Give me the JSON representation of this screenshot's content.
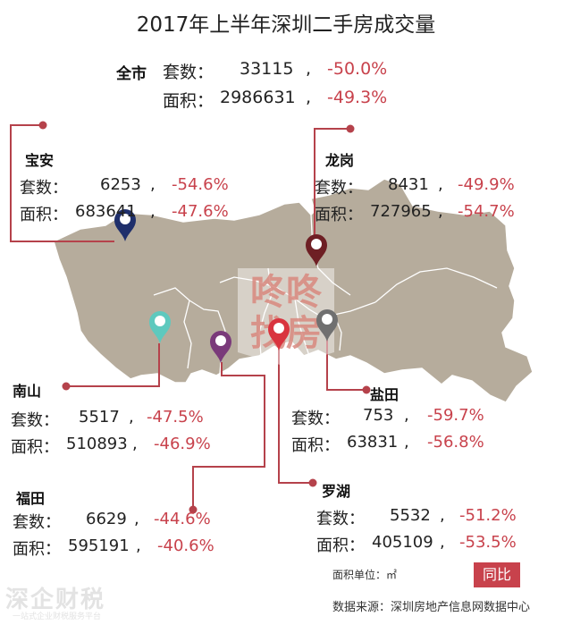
{
  "title": "2017年上半年深圳二手房成交量",
  "citywide": {
    "name": "全市",
    "sets_label": "套数：",
    "sets": "33115",
    "sets_change": "-50.0%",
    "area_label": "面积：",
    "area": "2986631",
    "area_change": "-49.3%"
  },
  "districts": {
    "baoan": {
      "name": "宝安",
      "sets_label": "套数：",
      "sets": "6253",
      "sets_change": "-54.6%",
      "area_label": "面积：",
      "area": "683641",
      "area_change": "-47.6%",
      "pin_color": "#1f2f6b"
    },
    "longgang": {
      "name": "龙岗",
      "sets_label": "套数：",
      "sets": "8431",
      "sets_change": "-49.9%",
      "area_label": "面积：",
      "area": "727965",
      "area_change": "-54.7%",
      "pin_color": "#6e1f24"
    },
    "nanshan": {
      "name": "南山",
      "sets_label": "套数：",
      "sets": "5517",
      "sets_change": "-47.5%",
      "area_label": "面积：",
      "area": "510893",
      "area_change": "-46.9%",
      "pin_color": "#5ec9be"
    },
    "yantian": {
      "name": "盐田",
      "sets_label": "套数：",
      "sets": "753",
      "sets_change": "-59.7%",
      "area_label": "面积：",
      "area": "63831",
      "area_change": "-56.8%",
      "pin_color": "#707070"
    },
    "futian": {
      "name": "福田",
      "sets_label": "套数：",
      "sets": "6629",
      "sets_change": "-44.6%",
      "area_label": "面积：",
      "area": "595191",
      "area_change": "-40.6%",
      "pin_color": "#7a3a7a"
    },
    "luohu": {
      "name": "罗湖",
      "sets_label": "套数：",
      "sets": "5532",
      "sets_change": "-51.2%",
      "area_label": "面积：",
      "area": "405109",
      "area_change": "-53.5%",
      "pin_color": "#d9343f"
    }
  },
  "unit_note": "面积单位：㎡",
  "yoy_badge": "同比",
  "source": "数据来源：深圳房地产信息网数据中心",
  "watermark_center_line1": "咚咚",
  "watermark_center_line2": "找房",
  "watermark_corner": "深企财税",
  "watermark_corner_sub": "一站式企业财税服务平台",
  "colors": {
    "accent": "#c8424c",
    "map_fill": "#b5ab9b",
    "connector": "#b5424b"
  }
}
